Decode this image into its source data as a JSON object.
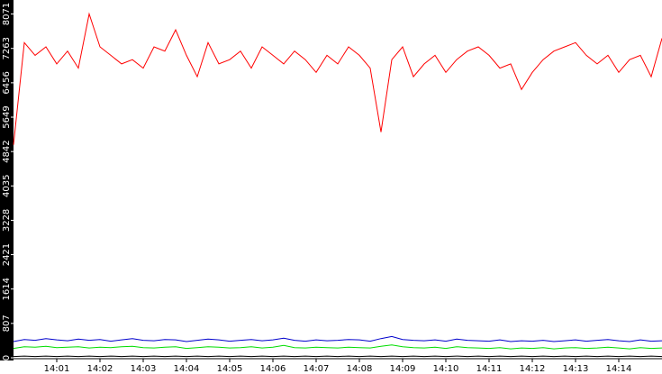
{
  "chart_data": {
    "type": "line",
    "x": [
      0,
      0.25,
      0.5,
      0.75,
      1,
      1.25,
      1.5,
      1.75,
      2,
      2.25,
      2.5,
      2.75,
      3,
      3.25,
      3.5,
      3.75,
      4,
      4.25,
      4.5,
      4.75,
      5,
      5.25,
      5.5,
      5.75,
      6,
      6.25,
      6.5,
      6.75,
      7,
      7.25,
      7.5,
      7.75,
      8,
      8.25,
      8.5,
      8.75,
      9,
      9.25,
      9.5,
      9.75,
      10,
      10.25,
      10.5,
      10.75,
      11,
      11.25,
      11.5,
      11.75,
      12,
      12.25,
      12.5,
      12.75,
      13,
      13.25,
      13.5,
      13.75,
      14,
      14.25,
      14.5,
      14.75,
      15
    ],
    "xlim": [
      0,
      15
    ],
    "xticks": [
      {
        "value": 1,
        "label": "14:01"
      },
      {
        "value": 2,
        "label": "14:02"
      },
      {
        "value": 3,
        "label": "14:03"
      },
      {
        "value": 4,
        "label": "14:04"
      },
      {
        "value": 5,
        "label": "14:05"
      },
      {
        "value": 6,
        "label": "14:06"
      },
      {
        "value": 7,
        "label": "14:07"
      },
      {
        "value": 8,
        "label": "14:08"
      },
      {
        "value": 9,
        "label": "14:09"
      },
      {
        "value": 10,
        "label": "14:10"
      },
      {
        "value": 11,
        "label": "14:11"
      },
      {
        "value": 12,
        "label": "14:12"
      },
      {
        "value": 13,
        "label": "14:13"
      },
      {
        "value": 14,
        "label": "14:14"
      }
    ],
    "ylim": [
      0,
      8400
    ],
    "yticks": [
      0,
      807,
      1614,
      2421,
      3228,
      4035,
      4842,
      5649,
      6456,
      7263,
      8071
    ],
    "series": [
      {
        "color": "#ff0000",
        "values": [
          5000,
          7400,
          7100,
          7300,
          6900,
          7200,
          6800,
          8071,
          7300,
          7100,
          6900,
          7000,
          6800,
          7300,
          7200,
          7700,
          7100,
          6600,
          7400,
          6900,
          7000,
          7200,
          6800,
          7300,
          7100,
          6900,
          7200,
          7000,
          6700,
          7100,
          6900,
          7300,
          7100,
          6800,
          5300,
          7000,
          7300,
          6600,
          6900,
          7100,
          6700,
          7000,
          7200,
          7300,
          7100,
          6800,
          6900,
          6300,
          6700,
          7000,
          7200,
          7300,
          7400,
          7100,
          6900,
          7100,
          6700,
          7000,
          7100,
          6600,
          7500
        ]
      },
      {
        "color": "#0000cc",
        "values": [
          380,
          430,
          410,
          450,
          420,
          400,
          440,
          410,
          430,
          390,
          420,
          450,
          410,
          400,
          430,
          420,
          380,
          410,
          440,
          420,
          390,
          410,
          430,
          400,
          420,
          460,
          410,
          390,
          420,
          400,
          410,
          430,
          420,
          390,
          450,
          500,
          430,
          410,
          400,
          420,
          390,
          440,
          410,
          400,
          390,
          420,
          380,
          400,
          390,
          410,
          380,
          400,
          420,
          390,
          410,
          430,
          400,
          380,
          420,
          390,
          400
        ]
      },
      {
        "color": "#00dd00",
        "values": [
          220,
          260,
          250,
          270,
          240,
          250,
          260,
          230,
          250,
          240,
          260,
          270,
          240,
          230,
          250,
          260,
          220,
          240,
          260,
          250,
          230,
          240,
          260,
          230,
          250,
          290,
          240,
          230,
          250,
          240,
          230,
          250,
          240,
          230,
          270,
          300,
          260,
          240,
          230,
          250,
          220,
          260,
          240,
          230,
          220,
          240,
          210,
          230,
          220,
          240,
          210,
          230,
          240,
          220,
          230,
          250,
          230,
          210,
          240,
          220,
          230
        ]
      },
      {
        "color": "#000000",
        "values": [
          30,
          40,
          30,
          40,
          30,
          40,
          30,
          40,
          30,
          40,
          30,
          40,
          30,
          40,
          30,
          40,
          30,
          40,
          30,
          40,
          30,
          40,
          30,
          40,
          30,
          40,
          30,
          40,
          30,
          40,
          30,
          40,
          30,
          40,
          30,
          40,
          30,
          40,
          30,
          40,
          30,
          40,
          30,
          40,
          30,
          40,
          30,
          40,
          30,
          40,
          30,
          40,
          30,
          40,
          30,
          40,
          30,
          40,
          30,
          40,
          30
        ]
      }
    ]
  }
}
